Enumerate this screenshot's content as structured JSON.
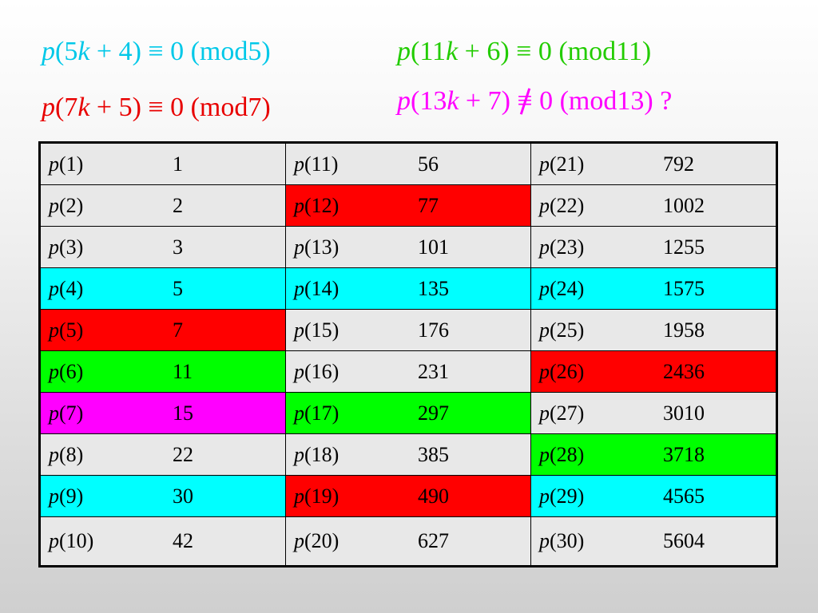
{
  "colors": {
    "cyan": "#00ffff",
    "red": "#ff0000",
    "green": "#00ff00",
    "magenta": "#ff00ff",
    "gray": "#e8e8e8",
    "eq_cyan": "#00c8e8",
    "eq_green": "#22cc00",
    "eq_red": "#e80000",
    "eq_magenta": "#ff00ff"
  },
  "equations": [
    {
      "id": "eq-mod5",
      "fn": "p",
      "a": "(5",
      "k": "k",
      "b": " + 4) ≡ 0 (mod5)",
      "color": "eq_cyan"
    },
    {
      "id": "eq-mod11",
      "fn": "p",
      "a": "(11",
      "k": "k",
      "b": " + 6) ≡ 0 (mod11)",
      "color": "eq_green"
    },
    {
      "id": "eq-mod7",
      "fn": "p",
      "a": "(7",
      "k": "k",
      "b": " + 5) ≡ 0 (mod7)",
      "color": "eq_red"
    },
    {
      "id": "eq-mod13",
      "fn": "p",
      "a": "(13",
      "k": "k",
      "b1": " + 7) ",
      "sym": "≡",
      "b2": " 0 (mod13) ?",
      "color": "eq_magenta"
    }
  ],
  "table": {
    "rows": [
      [
        {
          "arg": "(1)",
          "val": "1",
          "hl": "gray"
        },
        {
          "arg": "(11)",
          "val": "56",
          "hl": "gray"
        },
        {
          "arg": "(21)",
          "val": "792",
          "hl": "gray"
        }
      ],
      [
        {
          "arg": "(2)",
          "val": "2",
          "hl": "gray"
        },
        {
          "arg": "(12)",
          "val": "77",
          "hl": "red"
        },
        {
          "arg": "(22)",
          "val": "1002",
          "hl": "gray"
        }
      ],
      [
        {
          "arg": "(3)",
          "val": "3",
          "hl": "gray"
        },
        {
          "arg": "(13)",
          "val": "101",
          "hl": "gray"
        },
        {
          "arg": "(23)",
          "val": "1255",
          "hl": "gray"
        }
      ],
      [
        {
          "arg": "(4)",
          "val": "5",
          "hl": "cyan"
        },
        {
          "arg": "(14)",
          "val": "135",
          "hl": "cyan"
        },
        {
          "arg": "(24)",
          "val": "1575",
          "hl": "cyan"
        }
      ],
      [
        {
          "arg": "(5)",
          "val": "7",
          "hl": "red"
        },
        {
          "arg": "(15)",
          "val": "176",
          "hl": "gray"
        },
        {
          "arg": "(25)",
          "val": "1958",
          "hl": "gray"
        }
      ],
      [
        {
          "arg": "(6)",
          "val": "11",
          "hl": "green"
        },
        {
          "arg": "(16)",
          "val": "231",
          "hl": "gray"
        },
        {
          "arg": "(26)",
          "val": "2436",
          "hl": "red"
        }
      ],
      [
        {
          "arg": "(7)",
          "val": "15",
          "hl": "magenta"
        },
        {
          "arg": "(17)",
          "val": "297",
          "hl": "green"
        },
        {
          "arg": "(27)",
          "val": "3010",
          "hl": "gray"
        }
      ],
      [
        {
          "arg": "(8)",
          "val": "22",
          "hl": "gray"
        },
        {
          "arg": "(18)",
          "val": "385",
          "hl": "gray"
        },
        {
          "arg": "(28)",
          "val": "3718",
          "hl": "green"
        }
      ],
      [
        {
          "arg": "(9)",
          "val": "30",
          "hl": "cyan"
        },
        {
          "arg": "(19)",
          "val": "490",
          "hl": "red"
        },
        {
          "arg": "(29)",
          "val": "4565",
          "hl": "cyan"
        }
      ],
      [
        {
          "arg": "(10)",
          "val": "42",
          "hl": "gray"
        },
        {
          "arg": "(20)",
          "val": "627",
          "hl": "gray"
        },
        {
          "arg": "(30)",
          "val": "5604",
          "hl": "gray"
        }
      ]
    ],
    "fn": "p"
  }
}
